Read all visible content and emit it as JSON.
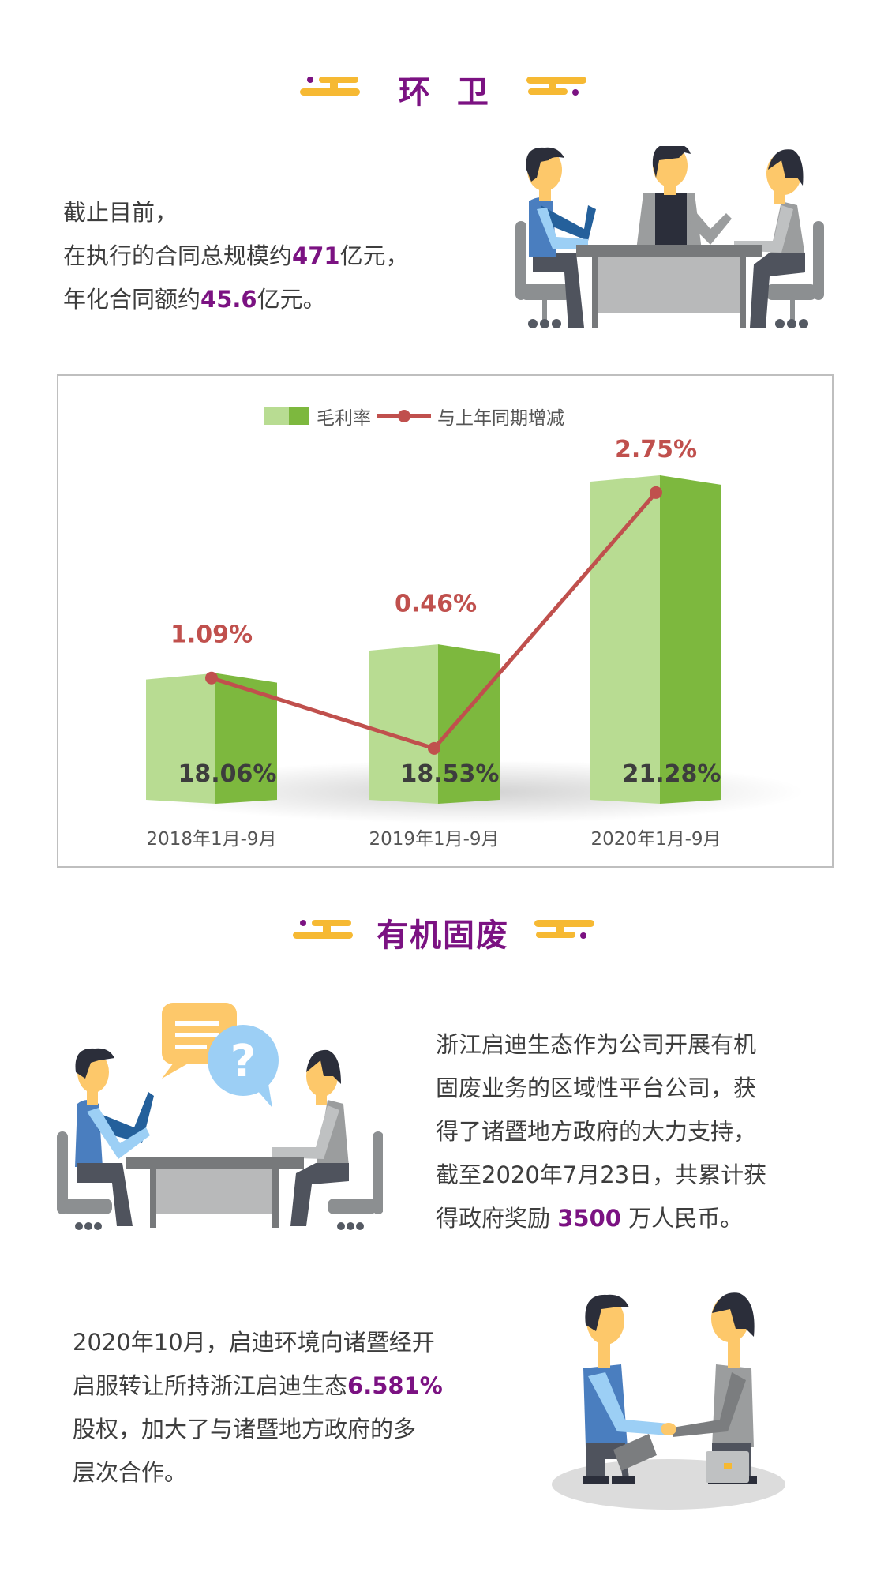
{
  "colors": {
    "accent": "#7b1282",
    "ornament": "#f6b933",
    "bar_light": "#b8dc92",
    "bar_dark": "#7db83e",
    "line": "#c0504d",
    "text": "#3d3d3d"
  },
  "section1": {
    "title": "环 卫",
    "lines": [
      {
        "pre": "截止目前，",
        "num": "",
        "post": ""
      },
      {
        "pre": "在执行的合同总规模约",
        "num": "471",
        "post": "亿元，"
      },
      {
        "pre": "年化合同额约",
        "num": "45.6",
        "post": "亿元。"
      }
    ],
    "illustration": "three-people-meeting-at-table"
  },
  "chart_data": {
    "type": "bar",
    "categories": [
      "2018年1月-9月",
      "2019年1月-9月",
      "2020年1月-9月"
    ],
    "series": [
      {
        "name": "毛利率",
        "kind": "bar",
        "values": [
          18.06,
          18.53,
          21.28
        ],
        "labels": [
          "18.06%",
          "18.53%",
          "21.28%"
        ],
        "ylim": [
          16,
          22
        ]
      },
      {
        "name": "与上年同期增减",
        "kind": "line",
        "values": [
          1.09,
          0.46,
          2.75
        ],
        "labels": [
          "1.09%",
          "0.46%",
          "2.75%"
        ],
        "ylim": [
          0,
          3.3
        ]
      }
    ],
    "legend": "top-center",
    "grid": false,
    "axes_visible": false
  },
  "section2": {
    "title": "有机固废",
    "para1": [
      {
        "pre": "浙江启迪生态作为公司开展有机",
        "num": "",
        "post": ""
      },
      {
        "pre": "固废业务的区域性平台公司，获",
        "num": "",
        "post": ""
      },
      {
        "pre": "得了诸暨地方政府的大力支持，",
        "num": "",
        "post": ""
      },
      {
        "pre": "截至2020年7月23日，共累计获",
        "num": "",
        "post": ""
      },
      {
        "pre": "得政府奖励 ",
        "num": "3500",
        "post": " 万人民币。"
      }
    ],
    "para2": [
      {
        "pre": "2020年10月，启迪环境向诸暨经开",
        "num": "",
        "post": ""
      },
      {
        "pre": "启服转让所持浙江启迪生态",
        "num": "6.581%",
        "post": ""
      },
      {
        "pre": "股权，加大了与诸暨地方政府的多",
        "num": "",
        "post": ""
      },
      {
        "pre": "层次合作。",
        "num": "",
        "post": ""
      }
    ],
    "illustration_talk": "two-people-talking-speech-bubbles",
    "illustration_handshake": "two-people-handshake"
  }
}
